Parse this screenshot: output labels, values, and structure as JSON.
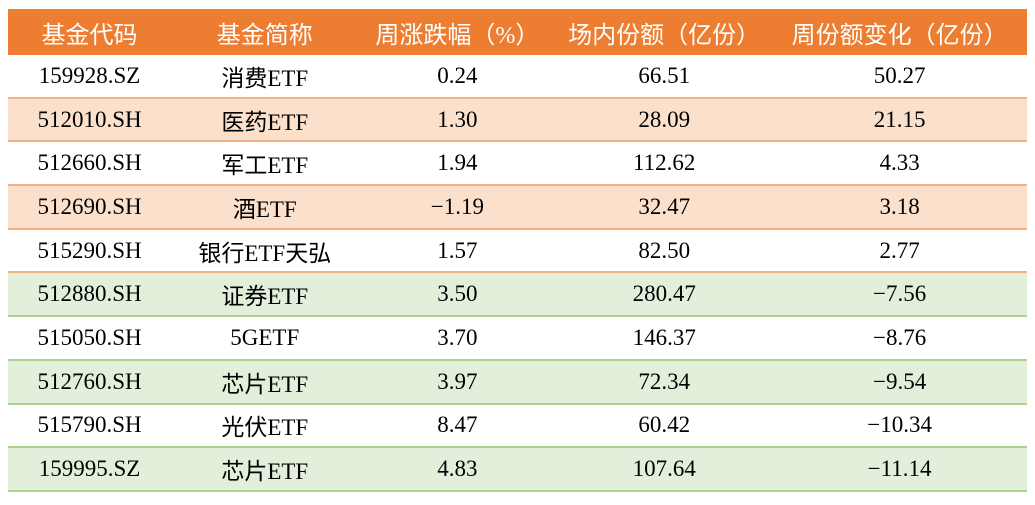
{
  "colors": {
    "header_bg": "#ED7D31",
    "header_text": "#FFFFFF",
    "row_peach_bg": "#FBE1CC",
    "row_green_bg": "#E2EFDA",
    "separator_orange": "#F2B183",
    "separator_green": "#ACD28F",
    "cell_text": "#000000",
    "page_bg": "#FFFFFF"
  },
  "chart_data": {
    "type": "table",
    "title": "",
    "columns": [
      "基金代码",
      "基金简称",
      "周涨跌幅（%）",
      "场内份额（亿份）",
      "周份额变化（亿份）"
    ],
    "rows": [
      [
        "159928.SZ",
        "消费ETF",
        "0.24",
        "66.51",
        "50.27"
      ],
      [
        "512010.SH",
        "医药ETF",
        "1.30",
        "28.09",
        "21.15"
      ],
      [
        "512660.SH",
        "军工ETF",
        "1.94",
        "112.62",
        "4.33"
      ],
      [
        "512690.SH",
        "酒ETF",
        "−1.19",
        "32.47",
        "3.18"
      ],
      [
        "515290.SH",
        "银行ETF天弘",
        "1.57",
        "82.50",
        "2.77"
      ],
      [
        "512880.SH",
        "证券ETF",
        "3.50",
        "280.47",
        "−7.56"
      ],
      [
        "515050.SH",
        "5GETF",
        "3.70",
        "146.37",
        "−8.76"
      ],
      [
        "512760.SH",
        "芯片ETF",
        "3.97",
        "72.34",
        "−9.54"
      ],
      [
        "515790.SH",
        "光伏ETF",
        "8.47",
        "60.42",
        "−10.34"
      ],
      [
        "159995.SZ",
        "芯片ETF",
        "4.83",
        "107.64",
        "−11.14"
      ]
    ]
  }
}
